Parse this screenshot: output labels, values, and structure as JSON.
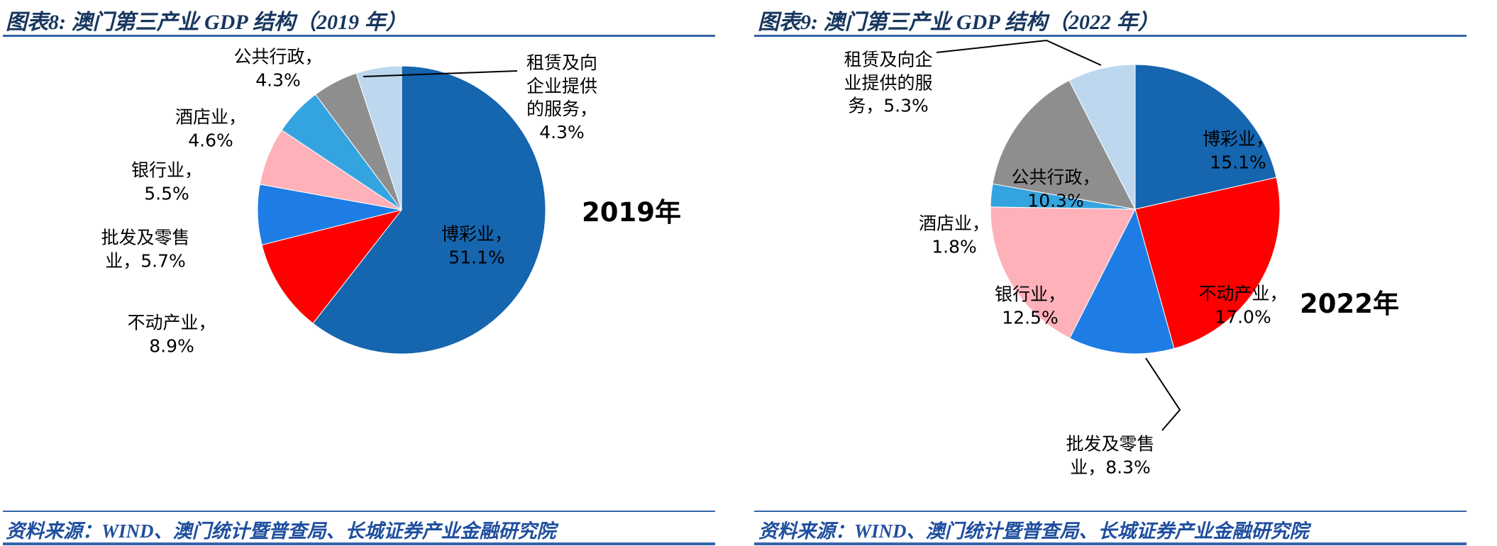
{
  "theme": {
    "title_color": "#17375E",
    "rule_color": "#3465A8",
    "source_color": "#1F4E9E",
    "label_color": "#000000",
    "background": "#FFFFFF"
  },
  "chart_data": [
    {
      "type": "pie",
      "title": "图表8:  澳门第三产业 GDP 结构（2019 年）",
      "center_year_label": "2019年",
      "source": "资料来源：WIND、澳门统计暨普查局、长城证券产业金融研究院",
      "categories": [
        "博彩业",
        "不动产业",
        "批发及零售业",
        "银行业",
        "酒店业",
        "公共行政",
        "租赁及向企业提供的服务"
      ],
      "values": [
        51.1,
        8.9,
        5.7,
        5.5,
        4.6,
        4.3,
        4.3
      ],
      "unit": "%",
      "colors": [
        "#1565AF",
        "#FE0000",
        "#1D7DE4",
        "#FFB1BA",
        "#33A4DF",
        "#8E8E8E",
        "#BDD7EE"
      ],
      "slice_labels": [
        "博彩业，\n51.1%",
        "不动产业，\n8.9%",
        "批发及零售\n业，5.7%",
        "银行业，\n5.5%",
        "酒店业，\n4.6%",
        "公共行政，\n4.3%",
        "租赁及向\n企业提供\n的服务，\n4.3%"
      ],
      "start_angle_deg": 0,
      "direction": "clockwise",
      "legend_position": "none"
    },
    {
      "type": "pie",
      "title": "图表9:  澳门第三产业 GDP 结构（2022 年）",
      "center_year_label": "2022年",
      "source": "资料来源：WIND、澳门统计暨普查局、长城证券产业金融研究院",
      "categories": [
        "博彩业",
        "不动产业",
        "批发及零售业",
        "银行业",
        "酒店业",
        "公共行政",
        "租赁及向企业提供的服务"
      ],
      "values": [
        15.1,
        17.0,
        8.3,
        12.5,
        1.8,
        10.3,
        5.3
      ],
      "unit": "%",
      "colors": [
        "#1565AF",
        "#FE0000",
        "#1D7DE4",
        "#FFB1BA",
        "#33A4DF",
        "#8E8E8E",
        "#BDD7EE"
      ],
      "slice_labels": [
        "博彩业，\n15.1%",
        "不动产业，\n17.0%",
        "批发及零售\n业，8.3%",
        "银行业，\n12.5%",
        "酒店业，\n1.8%",
        "公共行政，\n10.3%",
        "租赁及向企\n业提供的服\n务，5.3%"
      ],
      "start_angle_deg": 0,
      "direction": "clockwise",
      "legend_position": "none"
    }
  ]
}
